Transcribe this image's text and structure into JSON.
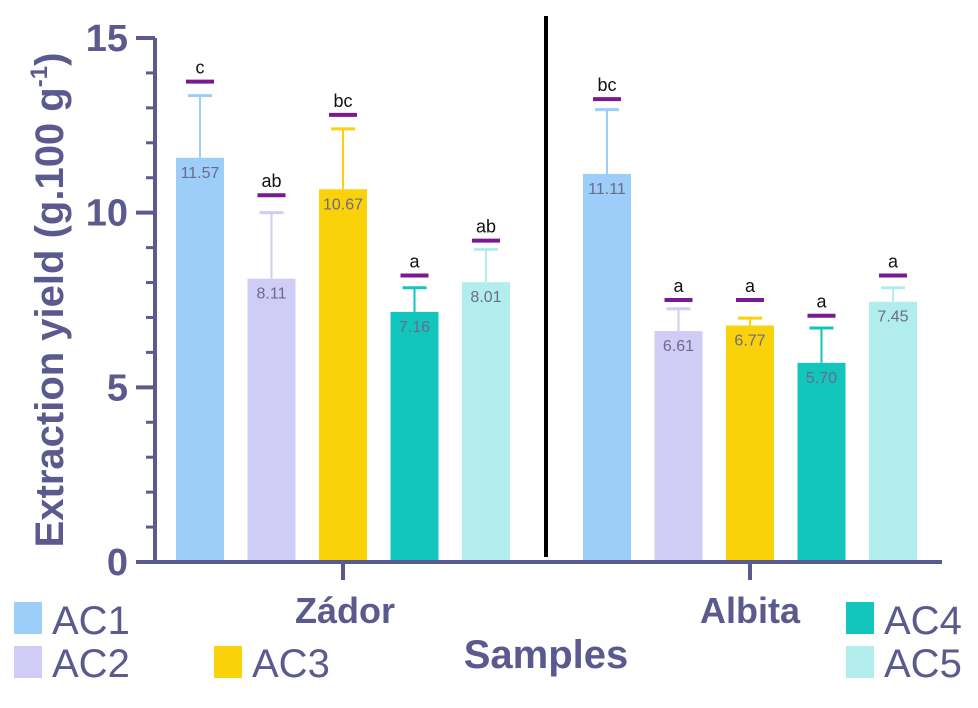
{
  "chart_data": {
    "type": "bar",
    "ylabel": "Extraction yield (g.100 g",
    "ylabel_superscript": "-1",
    "ylabel_close": ")",
    "xlabel": "Samples",
    "ylim": [
      0,
      15
    ],
    "yticks": [
      0,
      5,
      10,
      15
    ],
    "ytick_labels": [
      "0",
      "5",
      "10",
      "15"
    ],
    "groups": [
      "Zádor",
      "Albita"
    ],
    "series": [
      {
        "name": "AC1",
        "color": "#9dcdf9",
        "values": [
          11.57,
          11.11
        ],
        "labels": [
          "11.57",
          "11.11"
        ],
        "err_upper": [
          13.35,
          12.95
        ],
        "sig": [
          "c",
          "bc"
        ]
      },
      {
        "name": "AC2",
        "color": "#cfcdf6",
        "values": [
          8.11,
          6.61
        ],
        "labels": [
          "8.11",
          "6.61"
        ],
        "err_upper": [
          10.0,
          7.25
        ],
        "sig": [
          "ab",
          "a"
        ]
      },
      {
        "name": "AC3",
        "color": "#fad20a",
        "values": [
          10.67,
          6.77
        ],
        "labels": [
          "10.67",
          "6.77"
        ],
        "err_upper": [
          12.4,
          6.98
        ],
        "sig": [
          "bc",
          "a"
        ]
      },
      {
        "name": "AC4",
        "color": "#12c5bd",
        "values": [
          7.16,
          5.7
        ],
        "labels": [
          "7.16",
          "5.70"
        ],
        "err_upper": [
          7.85,
          6.7
        ],
        "sig": [
          "a",
          "a"
        ]
      },
      {
        "name": "AC5",
        "color": "#b2eded",
        "values": [
          8.01,
          7.45
        ],
        "labels": [
          "8.01",
          "7.45"
        ],
        "err_upper": [
          8.95,
          7.85
        ],
        "sig": [
          "ab",
          "a"
        ]
      }
    ],
    "sig_y": [
      [
        13.75,
        13.25
      ],
      [
        10.5,
        7.5
      ],
      [
        12.8,
        7.5
      ],
      [
        8.2,
        7.05
      ],
      [
        9.2,
        8.2
      ]
    ],
    "error_color": "#ffffff",
    "sig_bar_color": "#7a1a93",
    "axis_color": "#5b5a8f",
    "divider_color": "#000000",
    "grid": false
  }
}
